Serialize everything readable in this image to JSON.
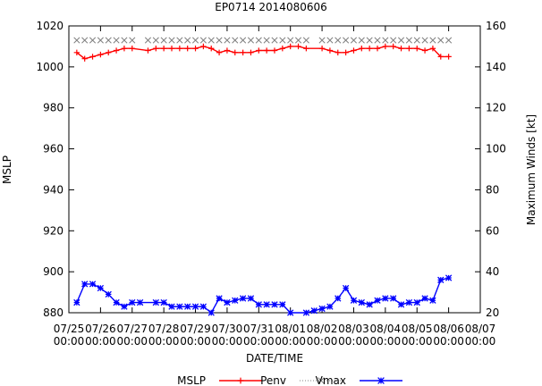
{
  "chart_data": {
    "type": "line",
    "title": "EP0714 2014080606",
    "xlabel": "DATE/TIME",
    "ylabel_left": "MSLP",
    "ylabel_right": "Maximum Winds [kt]",
    "ylim_left": [
      880,
      1020
    ],
    "ylim_right": [
      20,
      160
    ],
    "yticks_left": [
      880,
      900,
      920,
      940,
      960,
      980,
      1000,
      1020
    ],
    "yticks_right": [
      20,
      40,
      60,
      80,
      100,
      120,
      140,
      160
    ],
    "x_ticks": [
      {
        "line1": "07/25",
        "line2": "00:00"
      },
      {
        "line1": "07/26",
        "line2": "00:00"
      },
      {
        "line1": "07/27",
        "line2": "00:00"
      },
      {
        "line1": "07/28",
        "line2": "00:00"
      },
      {
        "line1": "07/29",
        "line2": "00:00"
      },
      {
        "line1": "07/30",
        "line2": "00:00"
      },
      {
        "line1": "07/31",
        "line2": "00:00"
      },
      {
        "line1": "08/01",
        "line2": "00:00"
      },
      {
        "line1": "08/02",
        "line2": "00:00"
      },
      {
        "line1": "08/03",
        "line2": "00:00"
      },
      {
        "line1": "08/04",
        "line2": "00:00"
      },
      {
        "line1": "08/05",
        "line2": "00:00"
      },
      {
        "line1": "08/06",
        "line2": "00:00"
      },
      {
        "line1": "08/07",
        "line2": "00:00"
      }
    ],
    "legend_position": "bottom",
    "series": [
      {
        "name": "MSLP",
        "axis": "left",
        "color": "#ff0000",
        "marker": "plus",
        "values": [
          [
            0.25,
            1007
          ],
          [
            0.5,
            1004
          ],
          [
            0.75,
            1005
          ],
          [
            1.0,
            1006
          ],
          [
            1.25,
            1007
          ],
          [
            1.5,
            1008
          ],
          [
            1.75,
            1009
          ],
          [
            2.0,
            1009
          ],
          [
            2.5,
            1008
          ],
          [
            2.75,
            1009
          ],
          [
            3.0,
            1009
          ],
          [
            3.25,
            1009
          ],
          [
            3.5,
            1009
          ],
          [
            3.75,
            1009
          ],
          [
            4.0,
            1009
          ],
          [
            4.25,
            1010
          ],
          [
            4.5,
            1009
          ],
          [
            4.75,
            1007
          ],
          [
            5.0,
            1008
          ],
          [
            5.25,
            1007
          ],
          [
            5.5,
            1007
          ],
          [
            5.75,
            1007
          ],
          [
            6.0,
            1008
          ],
          [
            6.25,
            1008
          ],
          [
            6.5,
            1008
          ],
          [
            6.75,
            1009
          ],
          [
            7.0,
            1010
          ],
          [
            7.25,
            1010
          ],
          [
            7.5,
            1009
          ],
          [
            8.0,
            1009
          ],
          [
            8.25,
            1008
          ],
          [
            8.5,
            1007
          ],
          [
            8.75,
            1007
          ],
          [
            9.0,
            1008
          ],
          [
            9.25,
            1009
          ],
          [
            9.5,
            1009
          ],
          [
            9.75,
            1009
          ],
          [
            10.0,
            1010
          ],
          [
            10.25,
            1010
          ],
          [
            10.5,
            1009
          ],
          [
            10.75,
            1009
          ],
          [
            11.0,
            1009
          ],
          [
            11.25,
            1008
          ],
          [
            11.5,
            1009
          ],
          [
            11.75,
            1005
          ],
          [
            12.0,
            1005
          ]
        ]
      },
      {
        "name": "Penv",
        "axis": "left",
        "color": "#808080",
        "marker": "cross",
        "values": [
          [
            0.25,
            1013
          ],
          [
            0.5,
            1013
          ],
          [
            0.75,
            1013
          ],
          [
            1.0,
            1013
          ],
          [
            1.25,
            1013
          ],
          [
            1.5,
            1013
          ],
          [
            1.75,
            1013
          ],
          [
            2.0,
            1013
          ],
          [
            2.5,
            1013
          ],
          [
            2.75,
            1013
          ],
          [
            3.0,
            1013
          ],
          [
            3.25,
            1013
          ],
          [
            3.5,
            1013
          ],
          [
            3.75,
            1013
          ],
          [
            4.0,
            1013
          ],
          [
            4.25,
            1013
          ],
          [
            4.5,
            1013
          ],
          [
            4.75,
            1013
          ],
          [
            5.0,
            1013
          ],
          [
            5.25,
            1013
          ],
          [
            5.5,
            1013
          ],
          [
            5.75,
            1013
          ],
          [
            6.0,
            1013
          ],
          [
            6.25,
            1013
          ],
          [
            6.5,
            1013
          ],
          [
            6.75,
            1013
          ],
          [
            7.0,
            1013
          ],
          [
            7.25,
            1013
          ],
          [
            7.5,
            1013
          ],
          [
            8.0,
            1013
          ],
          [
            8.25,
            1013
          ],
          [
            8.5,
            1013
          ],
          [
            8.75,
            1013
          ],
          [
            9.0,
            1013
          ],
          [
            9.25,
            1013
          ],
          [
            9.5,
            1013
          ],
          [
            9.75,
            1013
          ],
          [
            10.0,
            1013
          ],
          [
            10.25,
            1013
          ],
          [
            10.5,
            1013
          ],
          [
            10.75,
            1013
          ],
          [
            11.0,
            1013
          ],
          [
            11.25,
            1013
          ],
          [
            11.5,
            1013
          ],
          [
            11.75,
            1013
          ],
          [
            12.0,
            1013
          ]
        ]
      },
      {
        "name": "Vmax",
        "axis": "right",
        "color": "#0000ff",
        "marker": "star",
        "values": [
          [
            0.25,
            25
          ],
          [
            0.5,
            34
          ],
          [
            0.75,
            34
          ],
          [
            1.0,
            32
          ],
          [
            1.25,
            29
          ],
          [
            1.5,
            25
          ],
          [
            1.75,
            23
          ],
          [
            2.0,
            25
          ],
          [
            2.25,
            25
          ],
          [
            2.75,
            25
          ],
          [
            3.0,
            25
          ],
          [
            3.25,
            23
          ],
          [
            3.5,
            23
          ],
          [
            3.75,
            23
          ],
          [
            4.0,
            23
          ],
          [
            4.25,
            23
          ],
          [
            4.5,
            20
          ],
          [
            4.75,
            27
          ],
          [
            5.0,
            25
          ],
          [
            5.25,
            26
          ],
          [
            5.5,
            27
          ],
          [
            5.75,
            27
          ],
          [
            6.0,
            24
          ],
          [
            6.25,
            24
          ],
          [
            6.5,
            24
          ],
          [
            6.75,
            24
          ],
          [
            7.0,
            20
          ],
          [
            7.5,
            20
          ],
          [
            7.75,
            21
          ],
          [
            8.0,
            22
          ],
          [
            8.25,
            23
          ],
          [
            8.5,
            27
          ],
          [
            8.75,
            32
          ],
          [
            9.0,
            26
          ],
          [
            9.25,
            25
          ],
          [
            9.5,
            24
          ],
          [
            9.75,
            26
          ],
          [
            10.0,
            27
          ],
          [
            10.25,
            27
          ],
          [
            10.5,
            24
          ],
          [
            10.75,
            25
          ],
          [
            11.0,
            25
          ],
          [
            11.25,
            27
          ],
          [
            11.5,
            26
          ],
          [
            11.75,
            36
          ],
          [
            12.0,
            37
          ]
        ]
      }
    ]
  }
}
